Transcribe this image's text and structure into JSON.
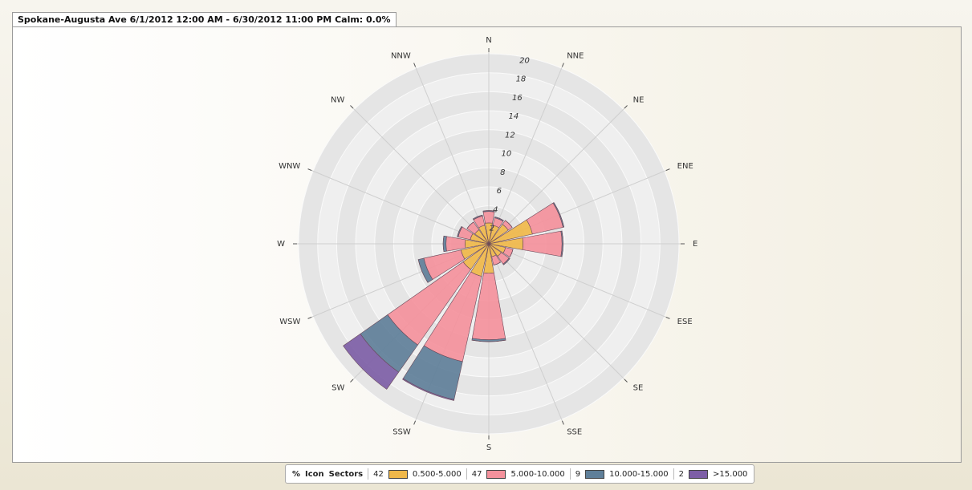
{
  "chart_data": {
    "type": "windrose",
    "title": "Spokane-Augusta Ave 6/1/2012 12:00 AM - 6/30/2012 11:00 PM Calm: 0.0%",
    "directions": [
      "N",
      "NNE",
      "NE",
      "ENE",
      "E",
      "ESE",
      "SE",
      "SSE",
      "S",
      "SSW",
      "SW",
      "WSW",
      "W",
      "WNW",
      "NW",
      "NNW"
    ],
    "rlim": [
      0,
      20
    ],
    "rticks": [
      2,
      4,
      6,
      8,
      10,
      12,
      14,
      16,
      18,
      20
    ],
    "legend_header": [
      "%",
      "Icon",
      "Sectors"
    ],
    "series": [
      {
        "name": "0.500-5.000",
        "percent": 42,
        "color": "#f0b84a",
        "values": [
          2.2,
          2.0,
          2.5,
          4.7,
          3.6,
          1.8,
          1.6,
          1.4,
          3.1,
          3.5,
          3.3,
          3.0,
          2.5,
          2.0,
          1.8,
          2.0
        ]
      },
      {
        "name": "5.000-10.000",
        "percent": 47,
        "color": "#f4919c",
        "values": [
          1.2,
          0.8,
          0.5,
          3.3,
          4.1,
          0.8,
          1.0,
          0.9,
          7.0,
          9.2,
          9.7,
          4.0,
          2.0,
          1.3,
          1.0,
          1.0
        ]
      },
      {
        "name": "10.000-15.000",
        "percent": 9,
        "color": "#5f7f99",
        "values": [
          0.1,
          0.1,
          0,
          0.1,
          0.1,
          0,
          0.1,
          0,
          0.2,
          4.1,
          3.5,
          0.6,
          0.3,
          0.1,
          0,
          0.1
        ]
      },
      {
        "name": ">15.000",
        "percent": 2,
        "color": "#7d5ea6",
        "values": [
          0,
          0,
          0,
          0,
          0,
          0,
          0,
          0,
          0,
          0.1,
          2.2,
          0,
          0,
          0,
          0,
          0
        ]
      }
    ]
  }
}
